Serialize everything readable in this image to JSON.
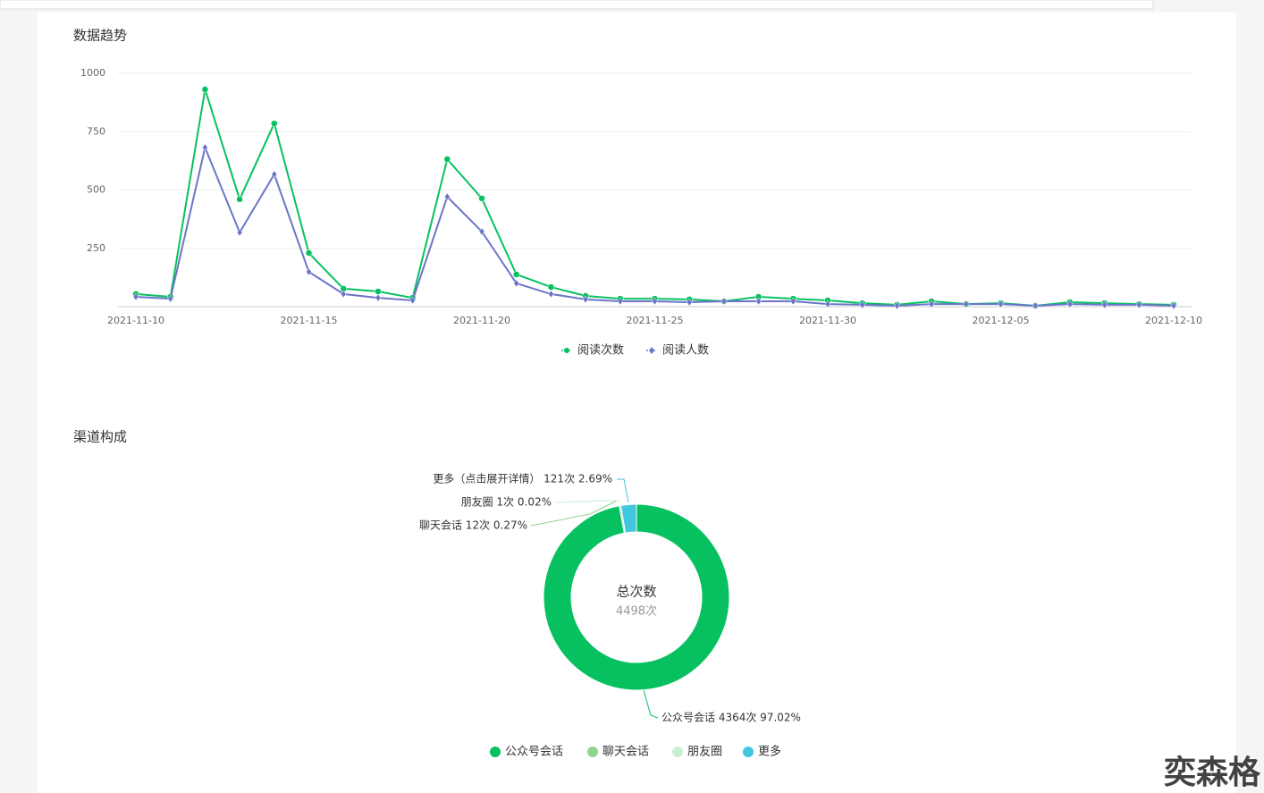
{
  "chart_data": [
    {
      "type": "line",
      "title": "数据趋势",
      "x": [
        "2021-11-10",
        "2021-11-11",
        "2021-11-12",
        "2021-11-13",
        "2021-11-14",
        "2021-11-15",
        "2021-11-16",
        "2021-11-17",
        "2021-11-18",
        "2021-11-19",
        "2021-11-20",
        "2021-11-21",
        "2021-11-22",
        "2021-11-23",
        "2021-11-24",
        "2021-11-25",
        "2021-11-26",
        "2021-11-27",
        "2021-11-28",
        "2021-11-29",
        "2021-11-30",
        "2021-12-01",
        "2021-12-02",
        "2021-12-03",
        "2021-12-04",
        "2021-12-05",
        "2021-12-06",
        "2021-12-07",
        "2021-12-08",
        "2021-12-09",
        "2021-12-10"
      ],
      "xticks": [
        "2021-11-10",
        "2021-11-15",
        "2021-11-20",
        "2021-11-25",
        "2021-11-30",
        "2021-12-05",
        "2021-12-10"
      ],
      "series": [
        {
          "name": "阅读次数",
          "color": "#07c160",
          "values": [
            54,
            42,
            931,
            460,
            785,
            230,
            77,
            65,
            38,
            632,
            464,
            138,
            84,
            46,
            34,
            34,
            31,
            23,
            42,
            34,
            27,
            15,
            8,
            23,
            11,
            15,
            4,
            19,
            15,
            11,
            8
          ]
        },
        {
          "name": "阅读人数",
          "color": "#6b74c9",
          "values": [
            42,
            34,
            682,
            318,
            567,
            149,
            54,
            38,
            27,
            471,
            322,
            100,
            54,
            31,
            23,
            23,
            19,
            23,
            23,
            23,
            11,
            8,
            4,
            11,
            11,
            11,
            4,
            11,
            8,
            8,
            4
          ]
        }
      ],
      "ylim": [
        0,
        1000
      ],
      "yticks": [
        250,
        500,
        750,
        1000
      ],
      "grid": true
    },
    {
      "type": "pie",
      "title": "渠道构成",
      "donut": true,
      "categories": [
        "公众号会话",
        "聊天会话",
        "朋友圈",
        "更多"
      ],
      "values": [
        4364,
        12,
        1,
        121
      ],
      "value_labels": [
        "公众号会话 4364次 97.02%",
        "聊天会话 12次 0.27%",
        "朋友圈 1次 0.02%",
        "更多（点击展开详情） 121次 2.69%"
      ],
      "colors": [
        "#07c160",
        "#8dd68d",
        "#c9efd0",
        "#40c7df"
      ],
      "center_title": "总次数",
      "center_value": "4498次"
    }
  ],
  "watermark": "奕森格"
}
